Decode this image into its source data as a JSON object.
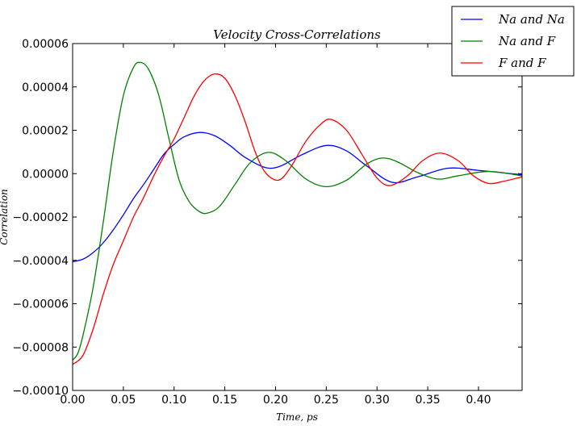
{
  "chart_data": {
    "type": "line",
    "title": "Velocity Cross-Correlations",
    "xlabel": "Time, ps",
    "ylabel": "Correlation",
    "xlim": [
      0,
      0.443
    ],
    "ylim": [
      -0.0001,
      6e-05
    ],
    "x_ticks": [
      "0.00",
      "0.05",
      "0.10",
      "0.15",
      "0.20",
      "0.25",
      "0.30",
      "0.35",
      "0.40"
    ],
    "x_tick_values": [
      0,
      0.05,
      0.1,
      0.15,
      0.2,
      0.25,
      0.3,
      0.35,
      0.4
    ],
    "y_ticks": [
      "0.00006",
      "0.00004",
      "0.00002",
      "0.00000",
      "−0.00002",
      "−0.00004",
      "−0.00006",
      "−0.00008",
      "−0.00010"
    ],
    "y_tick_values": [
      6e-05,
      4e-05,
      2e-05,
      0,
      -2e-05,
      -4e-05,
      -6e-05,
      -8e-05,
      -0.0001
    ],
    "grid": false,
    "legend_position": "top-right",
    "series": [
      {
        "name": "Na and Na",
        "color": "#0000ff",
        "x": [
          0,
          0.01,
          0.02,
          0.03,
          0.04,
          0.05,
          0.06,
          0.07,
          0.08,
          0.09,
          0.1,
          0.11,
          0.125,
          0.14,
          0.155,
          0.17,
          0.19,
          0.205,
          0.225,
          0.25,
          0.27,
          0.29,
          0.315,
          0.34,
          0.37,
          0.4,
          0.443
        ],
        "y": [
          -4.06e-05,
          -3.95e-05,
          -3.65e-05,
          -3.2e-05,
          -2.6e-05,
          -1.9e-05,
          -1.15e-05,
          -5e-06,
          2e-06,
          9e-06,
          1.35e-05,
          1.7e-05,
          1.9e-05,
          1.75e-05,
          1.3e-05,
          7.5e-06,
          2.8e-06,
          3.5e-06,
          8.5e-06,
          1.3e-05,
          1.05e-05,
          3.5e-06,
          -4e-06,
          -1.5e-06,
          2.5e-06,
          1.5e-06,
          -5e-07
        ]
      },
      {
        "name": "Na and F",
        "color": "#008000",
        "x": [
          0,
          0.005,
          0.01,
          0.02,
          0.03,
          0.04,
          0.05,
          0.06,
          0.067,
          0.075,
          0.085,
          0.095,
          0.105,
          0.115,
          0.125,
          0.133,
          0.145,
          0.16,
          0.175,
          0.193,
          0.21,
          0.23,
          0.25,
          0.27,
          0.29,
          0.305,
          0.32,
          0.34,
          0.36,
          0.38,
          0.41,
          0.443
        ],
        "y": [
          -8.6e-05,
          -8.3e-05,
          -7.5e-05,
          -5.3e-05,
          -2.3e-05,
          1e-05,
          3.6e-05,
          4.9e-05,
          5.13e-05,
          4.8e-05,
          3.6e-05,
          1.6e-05,
          -3e-06,
          -1.3e-05,
          -1.75e-05,
          -1.82e-05,
          -1.5e-05,
          -5e-06,
          5e-06,
          9.8e-06,
          6e-06,
          -2.5e-06,
          -6e-06,
          -3e-06,
          4.5e-06,
          7.2e-06,
          5.5e-06,
          5e-07,
          -2.5e-06,
          -1e-06,
          1e-06,
          -1e-06
        ]
      },
      {
        "name": "F and F",
        "color": "#ff0000",
        "x": [
          0,
          0.01,
          0.02,
          0.03,
          0.04,
          0.05,
          0.06,
          0.07,
          0.08,
          0.09,
          0.1,
          0.11,
          0.12,
          0.13,
          0.14,
          0.15,
          0.16,
          0.17,
          0.18,
          0.19,
          0.203,
          0.215,
          0.23,
          0.245,
          0.255,
          0.27,
          0.285,
          0.3,
          0.313,
          0.33,
          0.345,
          0.362,
          0.38,
          0.395,
          0.41,
          0.425,
          0.443
        ],
        "y": [
          -8.8e-05,
          -8.4e-05,
          -7.2e-05,
          -5.6e-05,
          -4.2e-05,
          -3.1e-05,
          -2e-05,
          -1.1e-05,
          -1e-06,
          8e-06,
          1.6e-05,
          2.6e-05,
          3.6e-05,
          4.3e-05,
          4.6e-05,
          4.4e-05,
          3.6e-05,
          2.4e-05,
          1e-05,
          5e-07,
          -3e-06,
          3e-06,
          1.5e-05,
          2.3e-05,
          2.5e-05,
          2e-05,
          9e-06,
          -2e-06,
          -5.5e-06,
          -1e-06,
          6e-06,
          9.5e-06,
          6e-06,
          -1e-06,
          -4.5e-06,
          -3.5e-06,
          -1.5e-06
        ]
      }
    ]
  }
}
